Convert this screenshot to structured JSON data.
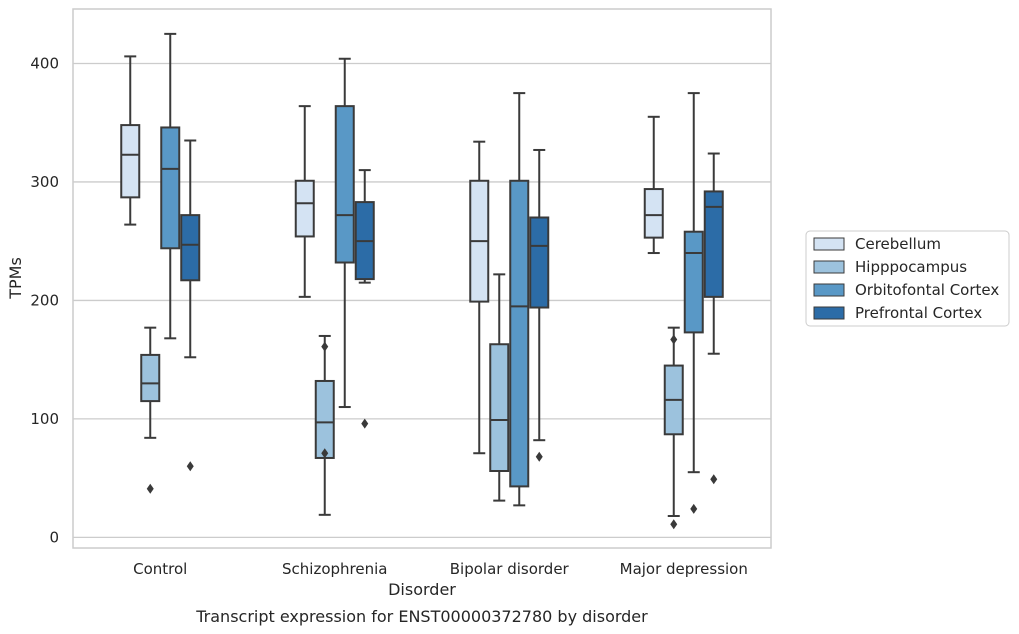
{
  "caption": "Transcript expression for ENST00000372780 by disorder",
  "chart_data": {
    "type": "boxplot",
    "xlabel": "Disorder",
    "ylabel": "TPMs",
    "ylim": [
      -9,
      446
    ],
    "yticks": [
      0,
      100,
      200,
      300,
      400
    ],
    "grid": "horizontal",
    "legend_position": "right",
    "categories": [
      "Control",
      "Schizophrenia",
      "Bipolar disorder",
      "Major depression"
    ],
    "series": [
      {
        "name": "Cerebellum",
        "color": "#d4e3f3",
        "boxes": [
          {
            "whislo": 264,
            "q1": 287,
            "med": 323,
            "q3": 348,
            "whishi": 406,
            "fliers": []
          },
          {
            "whislo": 203,
            "q1": 254,
            "med": 282,
            "q3": 301,
            "whishi": 364,
            "fliers": []
          },
          {
            "whislo": 71,
            "q1": 199,
            "med": 250,
            "q3": 301,
            "whishi": 334,
            "fliers": []
          },
          {
            "whislo": 240,
            "q1": 253,
            "med": 272,
            "q3": 294,
            "whishi": 355,
            "fliers": []
          }
        ]
      },
      {
        "name": "Hipppocampus",
        "color": "#9cc2dd",
        "boxes": [
          {
            "whislo": 84,
            "q1": 115,
            "med": 130,
            "q3": 154,
            "whishi": 177,
            "fliers": [
              41
            ]
          },
          {
            "whislo": 19,
            "q1": 67,
            "med": 97,
            "q3": 132,
            "whishi": 170,
            "fliers": [
              161,
              71
            ]
          },
          {
            "whislo": 31,
            "q1": 56,
            "med": 99,
            "q3": 163,
            "whishi": 222,
            "fliers": []
          },
          {
            "whislo": 18,
            "q1": 87,
            "med": 116,
            "q3": 145,
            "whishi": 177,
            "fliers": [
              167,
              11
            ]
          }
        ]
      },
      {
        "name": "Orbitofontal Cortex",
        "color": "#5998c6",
        "boxes": [
          {
            "whislo": 168,
            "q1": 244,
            "med": 311,
            "q3": 346,
            "whishi": 425,
            "fliers": []
          },
          {
            "whislo": 110,
            "q1": 232,
            "med": 272,
            "q3": 364,
            "whishi": 404,
            "fliers": []
          },
          {
            "whislo": 27,
            "q1": 43,
            "med": 195,
            "q3": 301,
            "whishi": 375,
            "fliers": []
          },
          {
            "whislo": 55,
            "q1": 173,
            "med": 240,
            "q3": 258,
            "whishi": 375,
            "fliers": [
              24
            ]
          }
        ]
      },
      {
        "name": "Prefrontal Cortex",
        "color": "#2c6ca7",
        "boxes": [
          {
            "whislo": 152,
            "q1": 217,
            "med": 247,
            "q3": 272,
            "whishi": 335,
            "fliers": [
              60
            ]
          },
          {
            "whislo": 215,
            "q1": 218,
            "med": 250,
            "q3": 283,
            "whishi": 310,
            "fliers": [
              96
            ]
          },
          {
            "whislo": 82,
            "q1": 194,
            "med": 246,
            "q3": 270,
            "whishi": 327,
            "fliers": [
              68
            ]
          },
          {
            "whislo": 155,
            "q1": 203,
            "med": 279,
            "q3": 292,
            "whishi": 324,
            "fliers": [
              49
            ]
          }
        ]
      }
    ]
  }
}
